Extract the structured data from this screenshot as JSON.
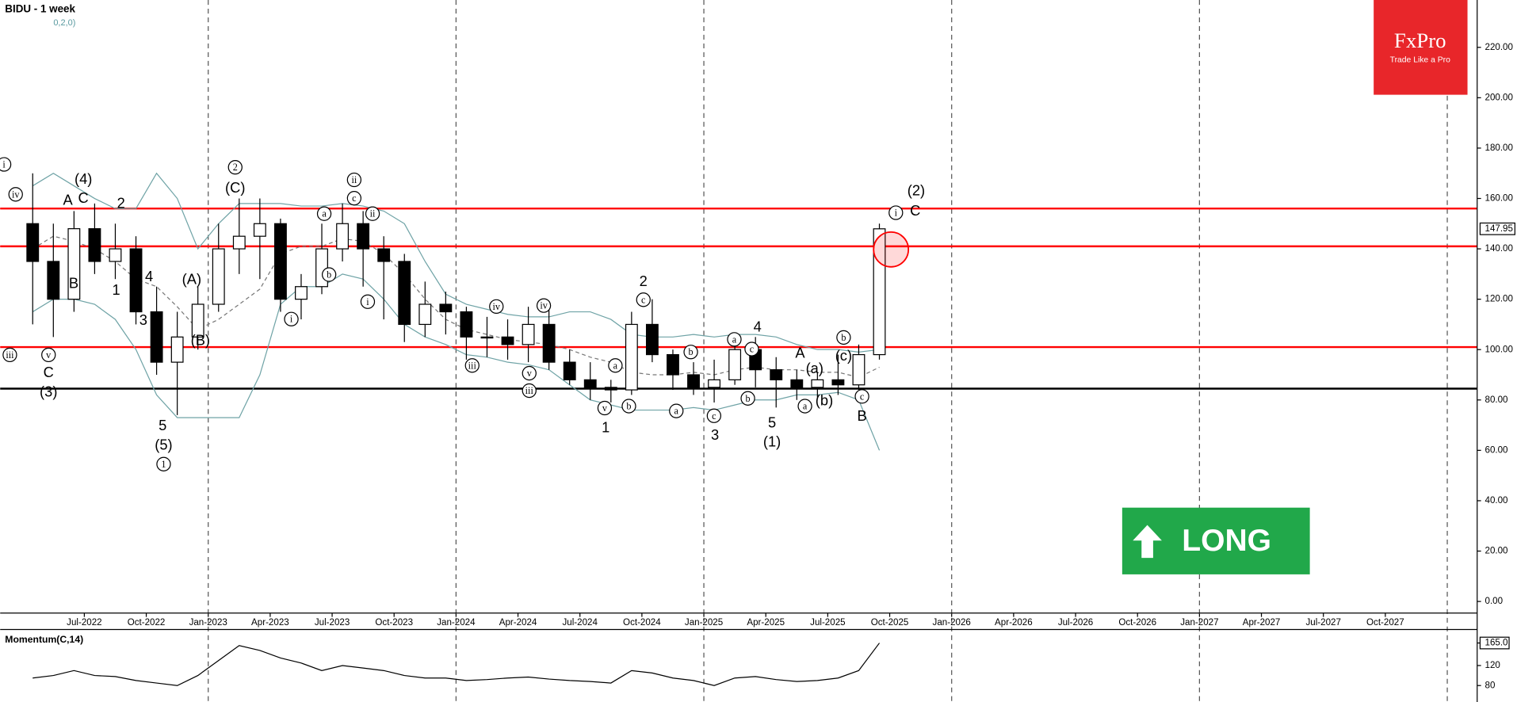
{
  "chart_data": [
    {
      "type": "candlestick",
      "title": "BIDU - 1 week",
      "subtitle": "0,2,0)",
      "x": [
        "Apr-2022",
        "May-2022",
        "Jun-2022",
        "Jul-2022",
        "Aug-2022",
        "Sep-2022",
        "Oct-2022",
        "Nov-2022",
        "Dec-2022",
        "Jan-2023",
        "Feb-2023",
        "Mar-2023",
        "Apr-2023",
        "May-2023",
        "Jun-2023",
        "Jul-2023",
        "Aug-2023",
        "Sep-2023",
        "Oct-2023",
        "Nov-2023",
        "Dec-2023",
        "Jan-2024",
        "Feb-2024",
        "Mar-2024",
        "Apr-2024",
        "May-2024",
        "Jun-2024",
        "Jul-2024",
        "Aug-2024",
        "Sep-2024",
        "Oct-2024",
        "Nov-2024",
        "Dec-2024",
        "Jan-2025",
        "Feb-2025",
        "Mar-2025",
        "Apr-2025",
        "May-2025",
        "Jun-2025",
        "Jul-2025",
        "Aug-2025",
        "Sep-2025"
      ],
      "open": [
        150,
        135,
        120,
        148,
        135,
        140,
        115,
        95,
        105,
        118,
        140,
        145,
        150,
        120,
        125,
        140,
        150,
        140,
        135,
        110,
        118,
        115,
        105,
        105,
        102,
        110,
        95,
        88,
        85,
        84,
        110,
        98,
        90,
        85,
        88,
        100,
        92,
        88,
        85,
        88,
        86,
        98
      ],
      "high": [
        170,
        150,
        155,
        158,
        150,
        145,
        125,
        115,
        125,
        150,
        160,
        160,
        152,
        130,
        150,
        158,
        155,
        145,
        138,
        127,
        123,
        117,
        113,
        112,
        117,
        117,
        100,
        95,
        88,
        115,
        120,
        100,
        95,
        96,
        105,
        105,
        97,
        92,
        91,
        98,
        102,
        150
      ],
      "low": [
        110,
        105,
        115,
        130,
        128,
        110,
        90,
        74,
        100,
        115,
        130,
        128,
        115,
        112,
        122,
        135,
        125,
        112,
        103,
        105,
        106,
        96,
        97,
        96,
        95,
        92,
        86,
        80,
        79,
        82,
        95,
        84,
        82,
        79,
        86,
        85,
        77,
        80,
        81,
        82,
        84,
        96
      ],
      "close": [
        135,
        120,
        148,
        135,
        140,
        115,
        95,
        105,
        118,
        140,
        145,
        150,
        120,
        125,
        140,
        150,
        140,
        135,
        110,
        118,
        115,
        105,
        105,
        102,
        110,
        95,
        88,
        85,
        84,
        110,
        98,
        90,
        85,
        88,
        100,
        92,
        88,
        85,
        88,
        86,
        98,
        147.95
      ],
      "bands": [
        {
          "color": "#6fa3a6",
          "values": [
            165,
            170,
            165,
            160,
            156,
            156,
            170,
            160,
            140,
            150,
            158,
            158,
            158,
            157,
            157,
            158,
            157,
            155,
            150,
            135,
            122,
            118,
            116,
            114,
            113,
            113,
            115,
            115,
            112,
            106,
            105,
            105,
            106,
            105,
            106,
            106,
            105,
            102,
            100,
            100,
            99,
            100
          ]
        },
        {
          "color": "#777777",
          "values": [
            140,
            145,
            143,
            140,
            135,
            128,
            125,
            117,
            108,
            112,
            118,
            124,
            138,
            141,
            141,
            144,
            143,
            138,
            130,
            120,
            112,
            108,
            106,
            104,
            103,
            102,
            100,
            97,
            95,
            91,
            90,
            90,
            91,
            90,
            92,
            93,
            92,
            92,
            91,
            91,
            89,
            93
          ]
        },
        {
          "color": "#6fa3a6",
          "values": [
            115,
            120,
            120,
            118,
            112,
            100,
            82,
            73,
            73,
            73,
            73,
            90,
            118,
            125,
            125,
            130,
            128,
            120,
            110,
            105,
            102,
            98,
            97,
            95,
            94,
            92,
            86,
            80,
            78,
            76,
            76,
            76,
            77,
            76,
            78,
            80,
            80,
            82,
            82,
            83,
            80,
            60
          ]
        }
      ],
      "hlines": [
        {
          "value": 156,
          "color": "#ff0000"
        },
        {
          "value": 141,
          "color": "#ff0000"
        },
        {
          "value": 101,
          "color": "#ff0000"
        },
        {
          "value": 84.5,
          "color": "#000000"
        }
      ],
      "last_price": 147.95,
      "xticks": [
        "Jul-2022",
        "Oct-2022",
        "Jan-2023",
        "Apr-2023",
        "Jul-2023",
        "Oct-2023",
        "Jan-2024",
        "Apr-2024",
        "Jul-2024",
        "Oct-2024",
        "Jan-2025",
        "Apr-2025",
        "Jul-2025",
        "Oct-2025",
        "Jan-2026",
        "Apr-2026",
        "Jul-2026",
        "Oct-2026",
        "Jan-2027",
        "Apr-2027",
        "Jul-2027",
        "Oct-2027"
      ],
      "ylim": [
        -4.6,
        238.8
      ],
      "yticks": [
        {
          "value": 0,
          "label": "0.00"
        },
        {
          "value": 20,
          "label": "20.00"
        },
        {
          "value": 40,
          "label": "40.00"
        },
        {
          "value": 60,
          "label": "60.00"
        },
        {
          "value": 80,
          "label": "80.00"
        },
        {
          "value": 100,
          "label": "100.00"
        },
        {
          "value": 120,
          "label": "120.00"
        },
        {
          "value": 140,
          "label": "140.00"
        },
        {
          "value": 160,
          "label": "160.00"
        },
        {
          "value": 180,
          "label": "180.00"
        },
        {
          "value": 200,
          "label": "200.00"
        },
        {
          "value": 220,
          "label": "220.00"
        }
      ],
      "annotations": [
        "i",
        "iv",
        "iii",
        "(4)",
        "A",
        "C",
        "B",
        "v",
        "C",
        "(3)",
        "2",
        "1",
        "4",
        "3",
        "5",
        "(5)",
        "1",
        "(A)",
        "(B)",
        "2",
        "(C)",
        "i",
        "ii",
        "c",
        "a",
        "b",
        "ii",
        "i",
        "iv",
        "iii",
        "iv",
        "v",
        "iii",
        "2",
        "c",
        "v",
        "1",
        "a",
        "b",
        "b",
        "a",
        "c",
        "3",
        "a",
        "4",
        "c",
        "b",
        "5",
        "(1)",
        "A",
        "(a)",
        "a",
        "(b)",
        "b",
        "(c)",
        "c",
        "B",
        "(2)",
        "i",
        "C"
      ]
    },
    {
      "type": "line",
      "title": "Momentum(C,14)",
      "x": [
        "Apr-2022",
        "May-2022",
        "Jun-2022",
        "Jul-2022",
        "Aug-2022",
        "Sep-2022",
        "Oct-2022",
        "Nov-2022",
        "Dec-2022",
        "Jan-2023",
        "Feb-2023",
        "Mar-2023",
        "Apr-2023",
        "May-2023",
        "Jun-2023",
        "Jul-2023",
        "Aug-2023",
        "Sep-2023",
        "Oct-2023",
        "Nov-2023",
        "Dec-2023",
        "Jan-2024",
        "Feb-2024",
        "Mar-2024",
        "Apr-2024",
        "May-2024",
        "Jun-2024",
        "Jul-2024",
        "Aug-2024",
        "Sep-2024",
        "Oct-2024",
        "Nov-2024",
        "Dec-2024",
        "Jan-2025",
        "Feb-2025",
        "Mar-2025",
        "Apr-2025",
        "May-2025",
        "Jun-2025",
        "Jul-2025",
        "Aug-2025",
        "Sep-2025"
      ],
      "values": [
        95,
        100,
        110,
        100,
        98,
        90,
        85,
        80,
        100,
        130,
        160,
        150,
        135,
        125,
        110,
        120,
        115,
        110,
        100,
        95,
        95,
        90,
        92,
        95,
        97,
        93,
        90,
        88,
        85,
        110,
        105,
        95,
        90,
        80,
        95,
        98,
        92,
        88,
        90,
        95,
        110,
        165
      ],
      "color": "#000000",
      "ylim": [
        51,
        192
      ],
      "yticks": [
        {
          "value": 165,
          "label": "165.0"
        },
        120,
        80
      ]
    }
  ],
  "brand": {
    "name": "FxPro",
    "tagline": "Trade Like a Pro"
  },
  "signal": "LONG"
}
